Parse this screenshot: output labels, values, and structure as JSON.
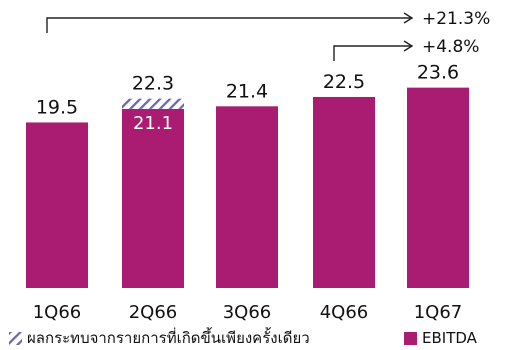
{
  "colors": {
    "ebitda": "#A91C72",
    "one_time": "#6E63B0",
    "text": "#111111",
    "inside_label": "#ffffff",
    "arrow": "#222222"
  },
  "chart_data": {
    "type": "bar",
    "title": "",
    "xlabel": "",
    "ylabel": "",
    "ylim": [
      0,
      24.5
    ],
    "grid": false,
    "categories": [
      "1Q66",
      "2Q66",
      "3Q66",
      "4Q66",
      "1Q67"
    ],
    "series": [
      {
        "name": "EBITDA",
        "values": [
          19.5,
          21.1,
          21.4,
          22.5,
          23.6
        ],
        "pattern": "solid"
      },
      {
        "name": "ผลกระทบจากรายการที่เกิดขึ้นเพียงครั้งเดียว",
        "values": [
          0,
          1.2,
          0,
          0,
          0
        ],
        "pattern": "diagonal-hatch"
      }
    ],
    "data_labels": {
      "totals": [
        "19.5",
        "22.3",
        "21.4",
        "22.5",
        "23.6"
      ],
      "inside": [
        "",
        "21.1",
        "",
        "",
        ""
      ]
    },
    "annotations": [
      {
        "from": "1Q66",
        "to": "1Q67",
        "text": "+21.3%"
      },
      {
        "from": "4Q66",
        "to": "1Q67",
        "text": "+4.8%"
      }
    ],
    "legend": {
      "position": "bottom",
      "items": [
        {
          "label": "ผลกระทบจากรายการที่เกิดขึ้นเพียงครั้งเดียว",
          "pattern": "diagonal-hatch"
        },
        {
          "label": "EBITDA",
          "pattern": "solid"
        }
      ]
    }
  }
}
